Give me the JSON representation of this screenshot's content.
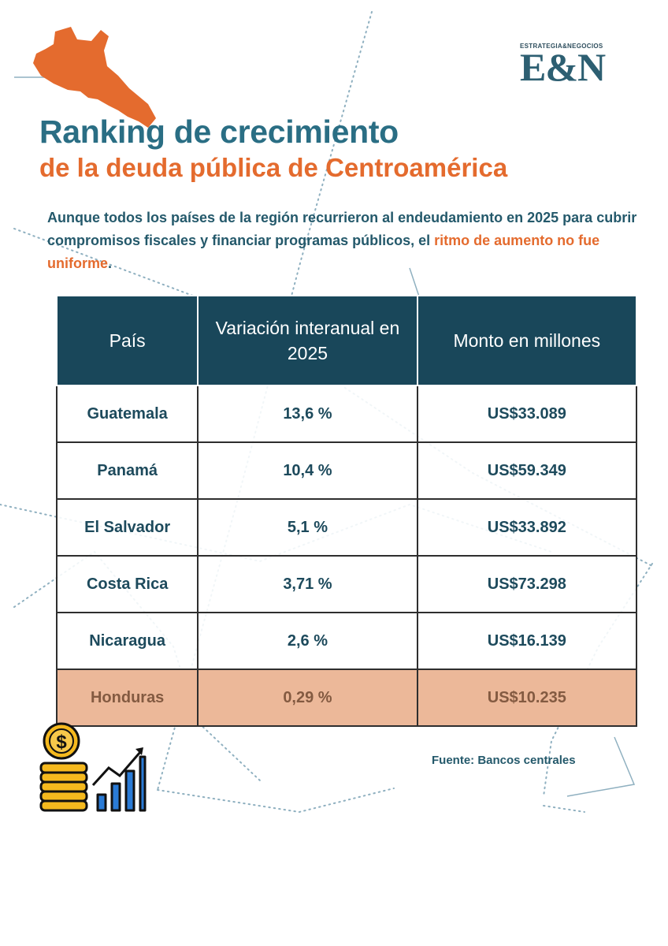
{
  "brand": {
    "kicker": "ESTRATEGIA&NEGOCIOS",
    "mark": "E&N"
  },
  "title": {
    "line1": "Ranking de crecimiento",
    "line2": "de la deuda pública de Centroamérica"
  },
  "intro": {
    "before": "Aunque todos los países de la región recurrieron al endeudamiento en 2025 para cubrir compromisos fiscales y financiar programas públicos, el ",
    "highlight": "ritmo de aumento no fue uniforme",
    "after": "."
  },
  "table": {
    "headers": [
      "País",
      "Variación interanual en 2025",
      "Monto en millones"
    ],
    "rows": [
      {
        "country": "Guatemala",
        "variation": "13,6 %",
        "amount": "US$33.089"
      },
      {
        "country": "Panamá",
        "variation": "10,4 %",
        "amount": "US$59.349"
      },
      {
        "country": "El Salvador",
        "variation": "5,1 %",
        "amount": "US$33.892"
      },
      {
        "country": "Costa Rica",
        "variation": "3,71 %",
        "amount": "US$73.298"
      },
      {
        "country": "Nicaragua",
        "variation": "2,6 %",
        "amount": "US$16.139"
      },
      {
        "country": "Honduras",
        "variation": "0,29 %",
        "amount": "US$10.235"
      }
    ]
  },
  "source": "Fuente: Bancos centrales",
  "icons": {
    "map": "central-america-map-icon",
    "money": "coins-growth-chart-icon"
  },
  "colors": {
    "teal_title": "#2a6e84",
    "orange": "#e46b2e",
    "header_bg": "#19475a",
    "highlight_row": "#ecb899",
    "text_dark": "#24596b"
  }
}
